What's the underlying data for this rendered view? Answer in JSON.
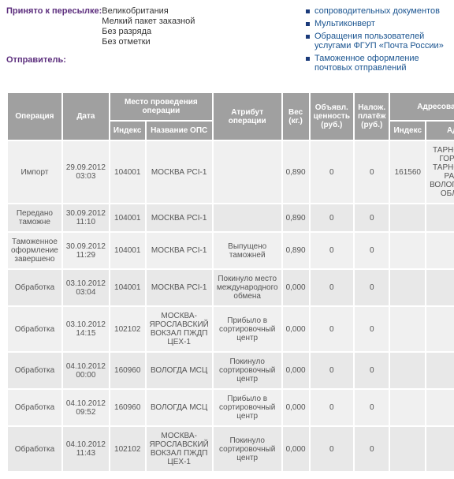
{
  "topInfo": {
    "forwardLabel": "Принято к пересылке:",
    "forwardValues": [
      "Великобритания",
      "Мелкий пакет заказной",
      "Без разряда",
      "Без отметки"
    ],
    "senderLabel": "Отправитель:"
  },
  "sideLinks": [
    "сопроводительных документов",
    "Мультиконверт",
    "Обращения пользователей услугами ФГУП «Почта России»",
    "Таможенное оформление почтовых отправлений"
  ],
  "tableHeaders": {
    "operation": "Операция",
    "date": "Дата",
    "placeGroup": "Место проведения операции",
    "index": "Индекс",
    "opsName": "Название ОПС",
    "attribute": "Атрибут операции",
    "weight": "Вес (кг.)",
    "declaredValue": "Объявл. ценность (руб.)",
    "codPayment": "Налож. платёж (руб.)",
    "addressedGroup": "Адресовано",
    "addrIndex": "Индекс",
    "addrAddress": "Адрес"
  },
  "rows": [
    {
      "op": "Импорт",
      "date": "29.09.2012 03:03",
      "idx": "104001",
      "ops": "МОСКВА PCI-1",
      "attr": "",
      "w": "0,890",
      "dv": "0",
      "cod": "0",
      "aidx": "161560",
      "addr": "ТАРНОГСКИЙ ГОРОДОК, ТАРНОГСКИЙ РАЙОН, ВОЛОГОДСКАЯ ОБЛАСТЬ"
    },
    {
      "op": "Передано таможне",
      "date": "30.09.2012 11:10",
      "idx": "104001",
      "ops": "МОСКВА PCI-1",
      "attr": "",
      "w": "0,890",
      "dv": "0",
      "cod": "0",
      "aidx": "",
      "addr": ""
    },
    {
      "op": "Таможенное оформление завершено",
      "date": "30.09.2012 11:29",
      "idx": "104001",
      "ops": "МОСКВА PCI-1",
      "attr": "Выпущено таможней",
      "w": "0,890",
      "dv": "0",
      "cod": "0",
      "aidx": "",
      "addr": ""
    },
    {
      "op": "Обработка",
      "date": "03.10.2012 03:04",
      "idx": "104001",
      "ops": "МОСКВА PCI-1",
      "attr": "Покинуло место международного обмена",
      "w": "0,000",
      "dv": "0",
      "cod": "0",
      "aidx": "",
      "addr": ""
    },
    {
      "op": "Обработка",
      "date": "03.10.2012 14:15",
      "idx": "102102",
      "ops": "МОСКВА-ЯРОСЛАВСКИЙ ВОКЗАЛ ПЖДП ЦЕХ-1",
      "attr": "Прибыло в сортировочный центр",
      "w": "0,000",
      "dv": "0",
      "cod": "0",
      "aidx": "",
      "addr": ""
    },
    {
      "op": "Обработка",
      "date": "04.10.2012 00:00",
      "idx": "160960",
      "ops": "ВОЛОГДА МСЦ",
      "attr": "Покинуло сортировочный центр",
      "w": "0,000",
      "dv": "0",
      "cod": "0",
      "aidx": "",
      "addr": ""
    },
    {
      "op": "Обработка",
      "date": "04.10.2012 09:52",
      "idx": "160960",
      "ops": "ВОЛОГДА МСЦ",
      "attr": "Прибыло в сортировочный центр",
      "w": "0,000",
      "dv": "0",
      "cod": "0",
      "aidx": "",
      "addr": ""
    },
    {
      "op": "Обработка",
      "date": "04.10.2012 11:43",
      "idx": "102102",
      "ops": "МОСКВА-ЯРОСЛАВСКИЙ ВОКЗАЛ ПЖДП ЦЕХ-1",
      "attr": "Покинуло сортировочный центр",
      "w": "0,000",
      "dv": "0",
      "cod": "0",
      "aidx": "",
      "addr": ""
    }
  ]
}
